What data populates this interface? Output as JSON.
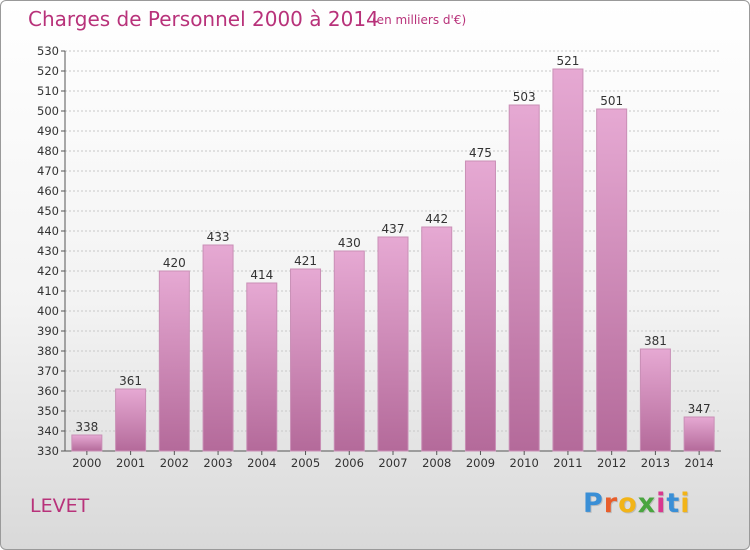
{
  "chart_data": {
    "type": "bar",
    "title": "Charges de Personnel 2000 à 2014",
    "subtitle": "(en milliers d'€)",
    "categories": [
      "2000",
      "2001",
      "2002",
      "2003",
      "2004",
      "2005",
      "2006",
      "2007",
      "2008",
      "2009",
      "2010",
      "2011",
      "2012",
      "2013",
      "2014"
    ],
    "values": [
      338,
      361,
      420,
      433,
      414,
      421,
      430,
      437,
      442,
      475,
      503,
      521,
      501,
      381,
      347
    ],
    "ylim": [
      330,
      530
    ],
    "ytick_step": 10,
    "grid": true,
    "legend": "none",
    "colors": {
      "bar_top": "#e6a9d3",
      "bar_bottom": "#b46a9a",
      "bar_edge": "#c98fb6",
      "text": "#b8327a"
    }
  },
  "footer": {
    "city": "LEVET",
    "logo_letters": [
      "P",
      "r",
      "o",
      "x",
      "i",
      "t",
      "i"
    ],
    "logo_colors": [
      "#3a8fd6",
      "#e85d2a",
      "#f2b418",
      "#4aa540",
      "#d8388f",
      "#3a8fd6",
      "#f2b418"
    ]
  }
}
